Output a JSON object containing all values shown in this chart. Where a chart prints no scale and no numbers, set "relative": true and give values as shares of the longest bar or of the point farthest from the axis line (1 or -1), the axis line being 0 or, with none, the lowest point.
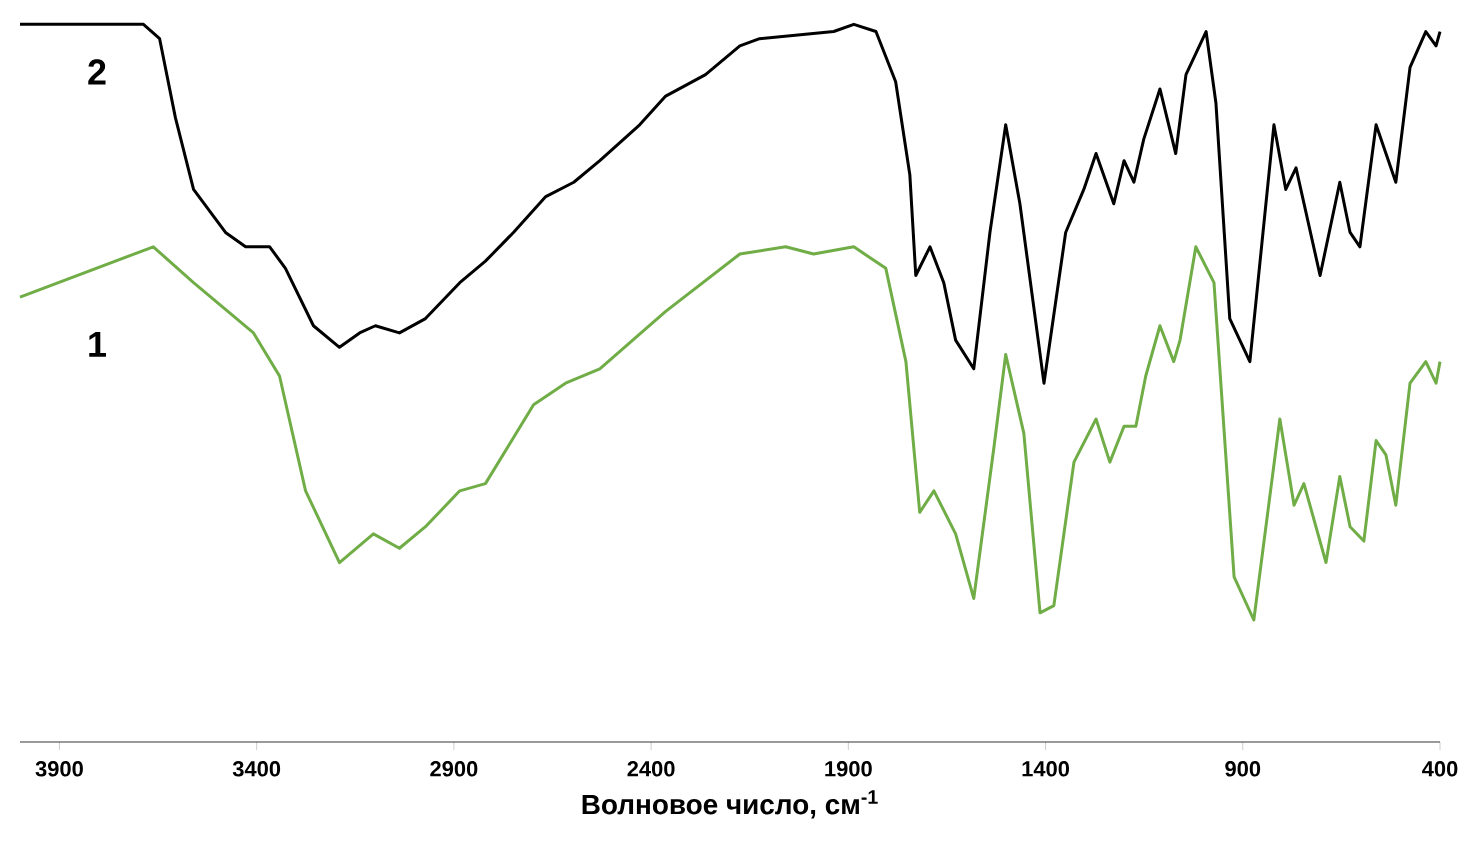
{
  "chart_data": {
    "type": "line",
    "relative": true,
    "xlabel": "Волновое число, см$^{-1}$",
    "xlim": [
      4000,
      400
    ],
    "xticks": [
      3900,
      3400,
      2900,
      2400,
      1900,
      1400,
      900,
      400
    ],
    "tick_labels": "x",
    "line_style": "solid",
    "marker": "none",
    "series": [
      {
        "name": "1",
        "color": "#70ad47",
        "x": [
          4000,
          3662,
          3560,
          3408,
          3342,
          3276,
          3190,
          3104,
          3038,
          2972,
          2885,
          2820,
          2698,
          2617,
          2530,
          2363,
          2175,
          2059,
          1988,
          1886,
          1805,
          1754,
          1719,
          1683,
          1628,
          1582,
          1531,
          1501,
          1455,
          1414,
          1379,
          1328,
          1272,
          1237,
          1201,
          1171,
          1146,
          1110,
          1075,
          1059,
          1019,
          973,
          922,
          872,
          806,
          770,
          745,
          689,
          654,
          628,
          593,
          562,
          537,
          512,
          476,
          436,
          410,
          400
        ],
        "values": [
          0.62,
          0.69,
          0.64,
          0.57,
          0.51,
          0.35,
          0.25,
          0.29,
          0.27,
          0.3,
          0.35,
          0.36,
          0.47,
          0.5,
          0.52,
          0.6,
          0.68,
          0.69,
          0.68,
          0.69,
          0.66,
          0.53,
          0.32,
          0.35,
          0.29,
          0.2,
          0.41,
          0.54,
          0.43,
          0.18,
          0.19,
          0.39,
          0.45,
          0.39,
          0.44,
          0.44,
          0.51,
          0.58,
          0.53,
          0.56,
          0.69,
          0.64,
          0.23,
          0.17,
          0.45,
          0.33,
          0.36,
          0.25,
          0.37,
          0.3,
          0.28,
          0.42,
          0.4,
          0.33,
          0.5,
          0.53,
          0.5,
          0.53
        ]
      },
      {
        "name": "2",
        "color": "#000000",
        "x": [
          4000,
          3687,
          3646,
          3606,
          3560,
          3479,
          3428,
          3367,
          3327,
          3256,
          3190,
          3139,
          3099,
          3038,
          2972,
          2885,
          2820,
          2749,
          2667,
          2596,
          2530,
          2429,
          2363,
          2262,
          2175,
          2125,
          1937,
          1886,
          1830,
          1780,
          1744,
          1729,
          1693,
          1658,
          1628,
          1582,
          1541,
          1501,
          1465,
          1404,
          1349,
          1303,
          1272,
          1227,
          1201,
          1176,
          1151,
          1110,
          1070,
          1044,
          993,
          968,
          933,
          882,
          821,
          791,
          765,
          704,
          654,
          628,
          603,
          562,
          537,
          512,
          476,
          436,
          410,
          400
        ],
        "values": [
          1.0,
          1.0,
          0.98,
          0.87,
          0.77,
          0.71,
          0.69,
          0.69,
          0.66,
          0.58,
          0.55,
          0.57,
          0.58,
          0.57,
          0.59,
          0.64,
          0.67,
          0.71,
          0.76,
          0.78,
          0.81,
          0.86,
          0.9,
          0.93,
          0.97,
          0.98,
          0.99,
          1.0,
          0.99,
          0.92,
          0.79,
          0.65,
          0.69,
          0.64,
          0.56,
          0.52,
          0.71,
          0.86,
          0.75,
          0.5,
          0.71,
          0.77,
          0.82,
          0.75,
          0.81,
          0.78,
          0.84,
          0.91,
          0.82,
          0.93,
          0.99,
          0.89,
          0.59,
          0.53,
          0.86,
          0.77,
          0.8,
          0.65,
          0.78,
          0.71,
          0.69,
          0.86,
          0.82,
          0.78,
          0.94,
          0.99,
          0.97,
          0.99
        ]
      }
    ]
  }
}
